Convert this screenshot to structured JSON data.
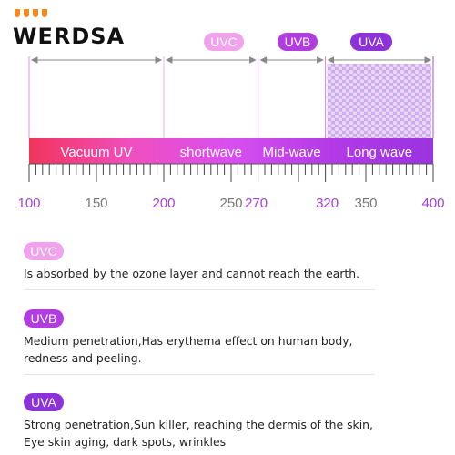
{
  "logo": {
    "text": "WERDSA"
  },
  "bands": {
    "uvc": {
      "label": "UVC",
      "color": "#f0a3ec"
    },
    "uvb": {
      "label": "UVB",
      "color": "#b13ce0"
    },
    "uva": {
      "label": "UVA",
      "color": "#8d31d8"
    }
  },
  "spectrum": {
    "segments": [
      {
        "label": "Vacuum UV",
        "from": 100,
        "to": 200
      },
      {
        "label": "shortwave",
        "from": 200,
        "to": 270
      },
      {
        "label": "Mid-wave",
        "from": 270,
        "to": 320
      },
      {
        "label": "Long wave",
        "from": 320,
        "to": 400
      }
    ],
    "axis_min": 100,
    "axis_max": 400,
    "tick_labels": [
      100,
      150,
      200,
      250,
      270,
      320,
      350,
      400
    ],
    "highlight_ticks": [
      100,
      200,
      270,
      320,
      400
    ],
    "dividers": [
      100,
      200,
      270,
      320,
      400
    ],
    "gradient": [
      "#f2345c",
      "#f04fbf",
      "#d84ff0",
      "#b23ae6",
      "#9a33e0"
    ]
  },
  "descriptions": [
    {
      "key": "uvc",
      "label": "UVC",
      "color": "#f0a3ec",
      "lines": [
        "Is absorbed by the ozone layer and cannot reach the earth."
      ]
    },
    {
      "key": "uvb",
      "label": "UVB",
      "color": "#b13ce0",
      "lines": [
        "Medium penetration,Has erythema effect on human body,",
        "redness and peeling."
      ]
    },
    {
      "key": "uva",
      "label": "UVA",
      "color": "#8d31d8",
      "lines": [
        "Strong penetration,Sun killer, reaching the dermis of the skin,",
        "Eye skin aging, dark spots, wrinkles"
      ]
    }
  ]
}
